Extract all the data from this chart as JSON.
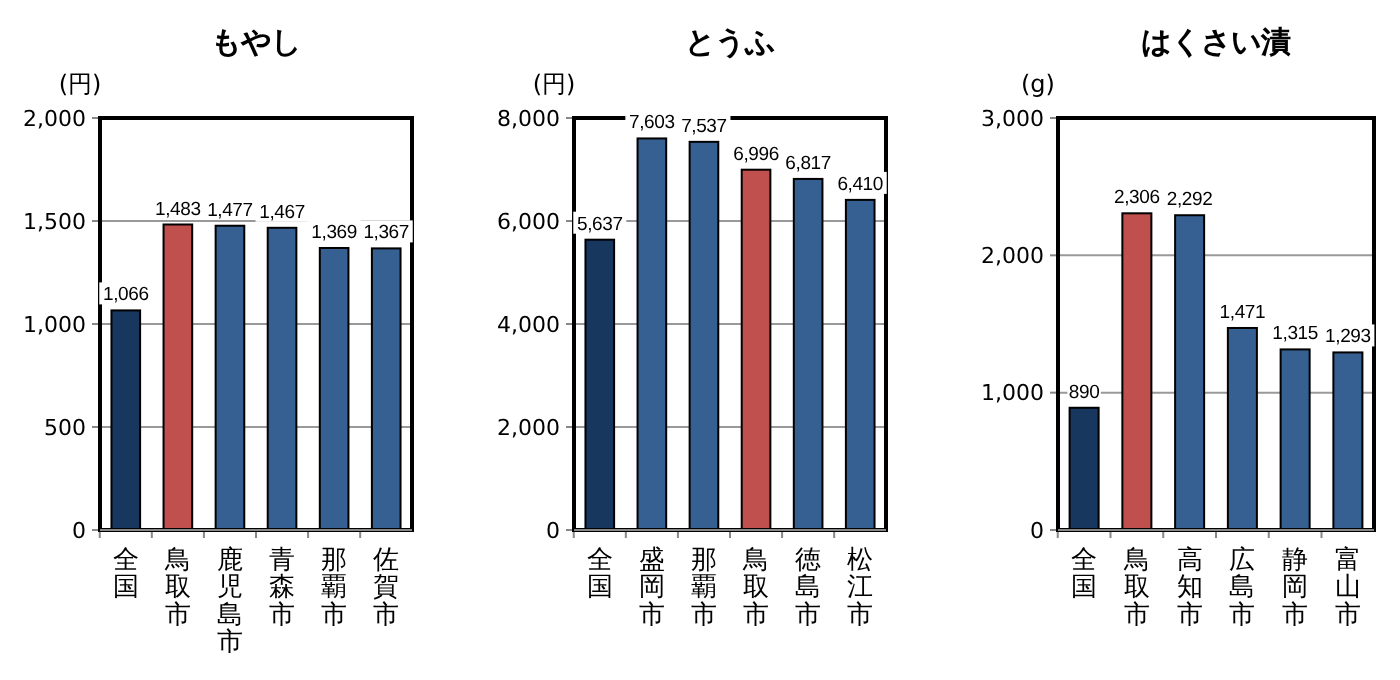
{
  "chart_data": [
    {
      "type": "bar",
      "title": "もやし",
      "ylabel": "(円)",
      "categories": [
        "全国",
        "鳥取市",
        "鹿児島市",
        "青森市",
        "那覇市",
        "佐賀市"
      ],
      "values": [
        1066,
        1483,
        1477,
        1467,
        1369,
        1367
      ],
      "colors": [
        "#17375e",
        "#c0504d",
        "#376092",
        "#376092",
        "#376092",
        "#376092"
      ],
      "ylim": [
        0,
        2000
      ],
      "yticks": [
        {
          "value": 0,
          "label": "0"
        },
        {
          "value": 500,
          "label": "500"
        },
        {
          "value": 1000,
          "label": "1,000"
        },
        {
          "value": 1500,
          "label": "1,500"
        },
        {
          "value": 2000,
          "label": "2,000"
        }
      ],
      "grid": "y",
      "data_labels": true,
      "value_labels": [
        "1,066",
        "1,483",
        "1,477",
        "1,467",
        "1,369",
        "1,367"
      ]
    },
    {
      "type": "bar",
      "title": "とうふ",
      "ylabel": "(円)",
      "categories": [
        "全国",
        "盛岡市",
        "那覇市",
        "鳥取市",
        "徳島市",
        "松江市"
      ],
      "values": [
        5637,
        7603,
        7537,
        6996,
        6817,
        6410
      ],
      "colors": [
        "#17375e",
        "#376092",
        "#376092",
        "#c0504d",
        "#376092",
        "#376092"
      ],
      "ylim": [
        0,
        8000
      ],
      "yticks": [
        {
          "value": 0,
          "label": "0"
        },
        {
          "value": 2000,
          "label": "2,000"
        },
        {
          "value": 4000,
          "label": "4,000"
        },
        {
          "value": 6000,
          "label": "6,000"
        },
        {
          "value": 8000,
          "label": "8,000"
        }
      ],
      "grid": "y",
      "data_labels": true,
      "value_labels": [
        "5,637",
        "7,603",
        "7,537",
        "6,996",
        "6,817",
        "6,410"
      ]
    },
    {
      "type": "bar",
      "title": "はくさい漬",
      "ylabel": "(g)",
      "categories": [
        "全国",
        "鳥取市",
        "高知市",
        "広島市",
        "静岡市",
        "富山市"
      ],
      "values": [
        890,
        2306,
        2292,
        1471,
        1315,
        1293
      ],
      "colors": [
        "#17375e",
        "#c0504d",
        "#376092",
        "#376092",
        "#376092",
        "#376092"
      ],
      "ylim": [
        0,
        3000
      ],
      "yticks": [
        {
          "value": 0,
          "label": "0"
        },
        {
          "value": 1000,
          "label": "1,000"
        },
        {
          "value": 2000,
          "label": "2,000"
        },
        {
          "value": 3000,
          "label": "3,000"
        }
      ],
      "grid": "y",
      "data_labels": true,
      "value_labels": [
        "890",
        "2,306",
        "2,292",
        "1,471",
        "1,315",
        "1,293"
      ]
    }
  ]
}
